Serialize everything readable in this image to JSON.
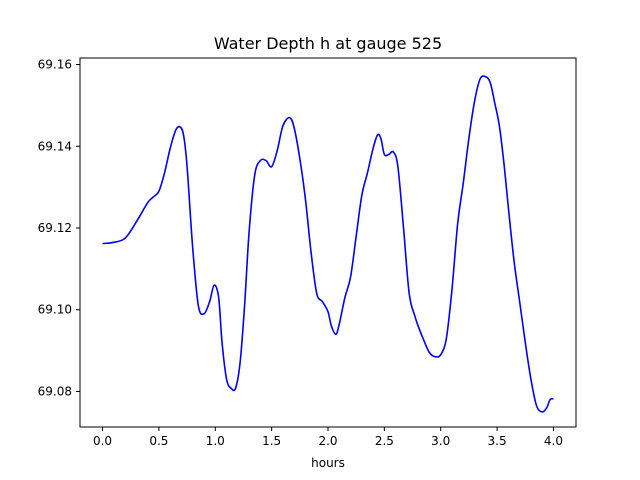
{
  "chart_data": {
    "type": "line",
    "title": "Water Depth h at gauge 525",
    "xlabel": "hours",
    "ylabel": "",
    "xlim": [
      -0.2,
      4.2
    ],
    "ylim": [
      69.0713,
      69.1616
    ],
    "xticks": [
      0.0,
      0.5,
      1.0,
      1.5,
      2.0,
      2.5,
      3.0,
      3.5,
      4.0
    ],
    "xtick_labels": [
      "0.0",
      "0.5",
      "1.0",
      "1.5",
      "2.0",
      "2.5",
      "3.0",
      "3.5",
      "4.0"
    ],
    "yticks": [
      69.08,
      69.1,
      69.12,
      69.14,
      69.16
    ],
    "ytick_labels": [
      "69.08",
      "69.10",
      "69.12",
      "69.14",
      "69.16"
    ],
    "grid": false,
    "series": [
      {
        "color": "#0000ff",
        "x": [
          0.0,
          0.1,
          0.2,
          0.3,
          0.4,
          0.45,
          0.5,
          0.55,
          0.6,
          0.65,
          0.69,
          0.72,
          0.75,
          0.8,
          0.85,
          0.9,
          0.95,
          0.99,
          1.03,
          1.06,
          1.1,
          1.14,
          1.18,
          1.22,
          1.26,
          1.3,
          1.35,
          1.4,
          1.45,
          1.5,
          1.55,
          1.6,
          1.66,
          1.7,
          1.75,
          1.8,
          1.85,
          1.9,
          1.95,
          2.0,
          2.03,
          2.07,
          2.1,
          2.15,
          2.2,
          2.25,
          2.3,
          2.35,
          2.4,
          2.44,
          2.47,
          2.5,
          2.54,
          2.58,
          2.62,
          2.67,
          2.72,
          2.77,
          2.8,
          2.85,
          2.9,
          2.95,
          3.0,
          3.05,
          3.1,
          3.15,
          3.2,
          3.25,
          3.3,
          3.35,
          3.4,
          3.44,
          3.48,
          3.52,
          3.56,
          3.6,
          3.65,
          3.7,
          3.75,
          3.8,
          3.85,
          3.9,
          3.94,
          3.97,
          4.0
        ],
        "y": [
          69.1162,
          69.1165,
          69.1175,
          69.1215,
          69.1262,
          69.1276,
          69.129,
          69.1335,
          69.1395,
          69.144,
          69.1447,
          69.1425,
          69.135,
          69.115,
          69.101,
          69.099,
          69.102,
          69.106,
          69.103,
          69.092,
          69.083,
          69.0808,
          69.0808,
          69.087,
          69.101,
          69.119,
          69.133,
          69.1365,
          69.1365,
          69.135,
          69.139,
          69.145,
          69.147,
          69.1445,
          69.137,
          69.127,
          69.114,
          69.104,
          69.102,
          69.0995,
          69.096,
          69.094,
          69.0965,
          69.103,
          69.108,
          69.118,
          69.128,
          69.1335,
          69.1395,
          69.1428,
          69.1418,
          69.138,
          69.138,
          69.1386,
          69.135,
          69.12,
          69.104,
          69.0985,
          69.096,
          69.0925,
          69.0895,
          69.0885,
          69.089,
          69.093,
          69.105,
          69.121,
          69.131,
          69.142,
          69.151,
          69.1565,
          69.157,
          69.1555,
          69.1505,
          69.145,
          69.136,
          69.125,
          69.112,
          69.102,
          69.092,
          69.083,
          69.0765,
          69.075,
          69.076,
          69.078,
          69.0782
        ]
      }
    ]
  }
}
